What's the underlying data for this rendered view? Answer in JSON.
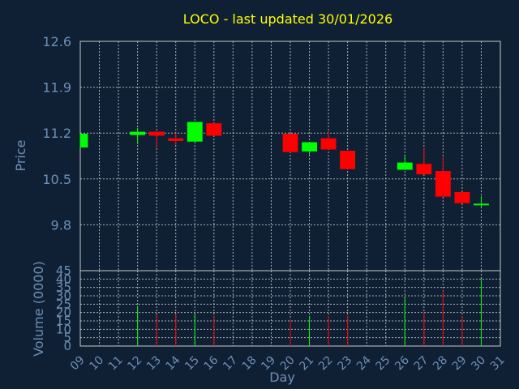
{
  "chart_data": {
    "type": "candlestick",
    "title": "LOCO - last updated 30/01/2026",
    "xlabel": "Day",
    "ylabel_price": "Price",
    "ylabel_volume": "Volume (0000)",
    "x_ticks": [
      "09",
      "10",
      "11",
      "12",
      "13",
      "14",
      "15",
      "16",
      "17",
      "18",
      "19",
      "20",
      "21",
      "22",
      "23",
      "24",
      "25",
      "26",
      "27",
      "28",
      "29",
      "30",
      "31"
    ],
    "price_ticks": [
      "9.8",
      "10.5",
      "11.2",
      "11.9",
      "12.6"
    ],
    "price_ylim": [
      9.1,
      12.6
    ],
    "volume_ticks": [
      "0",
      "5",
      "10",
      "15",
      "20",
      "25",
      "30",
      "35",
      "40",
      "45"
    ],
    "volume_ylim": [
      0,
      45
    ],
    "grid": true,
    "up_color": "#00ff00",
    "down_color": "#ff0000",
    "candles": [
      {
        "day": 9,
        "open": 10.98,
        "close": 11.19,
        "high": 11.19,
        "low": 10.98,
        "volume": 0
      },
      {
        "day": 12,
        "open": 11.17,
        "close": 11.22,
        "high": 11.28,
        "low": 11.03,
        "volume": 24
      },
      {
        "day": 13,
        "open": 11.22,
        "close": 11.16,
        "high": 11.22,
        "low": 10.97,
        "volume": 19
      },
      {
        "day": 14,
        "open": 11.12,
        "close": 11.08,
        "high": 11.2,
        "low": 11.02,
        "volume": 19
      },
      {
        "day": 15,
        "open": 11.07,
        "close": 11.37,
        "high": 11.37,
        "low": 11.07,
        "volume": 19
      },
      {
        "day": 16,
        "open": 11.35,
        "close": 11.16,
        "high": 11.35,
        "low": 11.16,
        "volume": 18
      },
      {
        "day": 20,
        "open": 11.19,
        "close": 10.91,
        "high": 11.19,
        "low": 10.91,
        "volume": 16
      },
      {
        "day": 21,
        "open": 10.92,
        "close": 11.06,
        "high": 11.06,
        "low": 10.87,
        "volume": 18
      },
      {
        "day": 22,
        "open": 11.12,
        "close": 10.95,
        "high": 11.23,
        "low": 10.95,
        "volume": 18
      },
      {
        "day": 23,
        "open": 10.93,
        "close": 10.65,
        "high": 10.93,
        "low": 10.65,
        "volume": 18
      },
      {
        "day": 26,
        "open": 10.64,
        "close": 10.75,
        "high": 10.87,
        "low": 10.64,
        "volume": 29
      },
      {
        "day": 27,
        "open": 10.73,
        "close": 10.57,
        "high": 10.98,
        "low": 10.57,
        "volume": 20
      },
      {
        "day": 28,
        "open": 10.62,
        "close": 10.23,
        "high": 10.83,
        "low": 10.23,
        "volume": 33
      },
      {
        "day": 29,
        "open": 10.3,
        "close": 10.13,
        "high": 10.3,
        "low": 10.13,
        "volume": 18
      },
      {
        "day": 30,
        "open": 10.09,
        "close": 10.11,
        "high": 10.24,
        "low": 10.07,
        "volume": 40
      }
    ]
  }
}
